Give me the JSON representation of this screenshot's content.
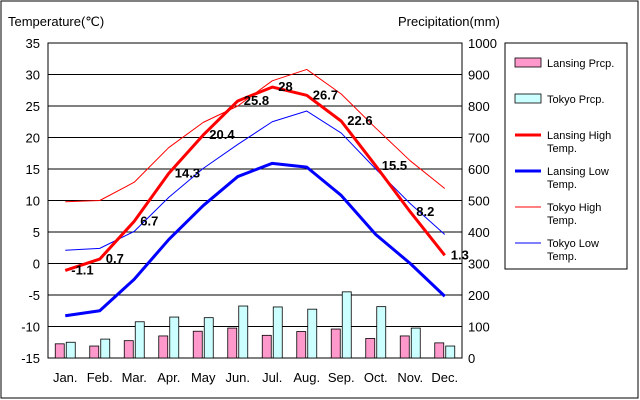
{
  "chart_data": {
    "type": "bar+line",
    "categories": [
      "Jan.",
      "Feb.",
      "Mar.",
      "Apr.",
      "May",
      "Jun.",
      "Jul.",
      "Aug.",
      "Sep.",
      "Oct.",
      "Nov.",
      "Dec."
    ],
    "y_left": {
      "label": "Temperature(℃)",
      "ylim": [
        -15,
        35
      ],
      "ticks": [
        35,
        30,
        25,
        20,
        15,
        10,
        5,
        0,
        -5,
        -10,
        -15
      ]
    },
    "y_right": {
      "label": "Precipitation(mm)",
      "ylim": [
        0,
        1000
      ],
      "ticks": [
        1000,
        900,
        800,
        700,
        600,
        500,
        400,
        300,
        200,
        100,
        0
      ]
    },
    "grid": true,
    "legend_position": "right",
    "bar_series": [
      {
        "name": "Lansing Prcp.",
        "color": "#ff99cc",
        "values": [
          45,
          38,
          55,
          70,
          85,
          95,
          72,
          84,
          92,
          62,
          70,
          48
        ]
      },
      {
        "name": "Tokyo Prcp.",
        "color": "#ccffff",
        "values": [
          50,
          60,
          115,
          130,
          128,
          165,
          162,
          155,
          210,
          163,
          95,
          38
        ]
      }
    ],
    "line_series": [
      {
        "name": "Lansing High Temp.",
        "color": "#ff0000",
        "width": 3,
        "values": [
          -1.1,
          0.7,
          6.7,
          14.3,
          20.4,
          25.8,
          28,
          26.7,
          22.6,
          15.5,
          8.2,
          1.3
        ]
      },
      {
        "name": "Lansing Low Temp.",
        "color": "#0000ff",
        "width": 3,
        "values": [
          -8.3,
          -7.5,
          -2.5,
          3.8,
          9.2,
          13.8,
          15.9,
          15.3,
          10.8,
          4.6,
          0,
          -5.2
        ]
      },
      {
        "name": "Tokyo High Temp.",
        "color": "#ff0000",
        "width": 1,
        "values": [
          9.8,
          10,
          12.9,
          18.4,
          22.4,
          25,
          29,
          30.8,
          26.9,
          21.5,
          16.3,
          11.9
        ]
      },
      {
        "name": "Tokyo Low Temp.",
        "color": "#0000ff",
        "width": 1,
        "values": [
          2.1,
          2.4,
          5.1,
          10.5,
          15.1,
          18.9,
          22.5,
          24.2,
          20.7,
          15,
          9.5,
          4.6
        ]
      }
    ],
    "data_labels": [
      "-1.1",
      "0.7",
      "6.7",
      "14.3",
      "20.4",
      "25.8",
      "28",
      "26.7",
      "22.6",
      "15.5",
      "8.2",
      "1.3"
    ]
  }
}
